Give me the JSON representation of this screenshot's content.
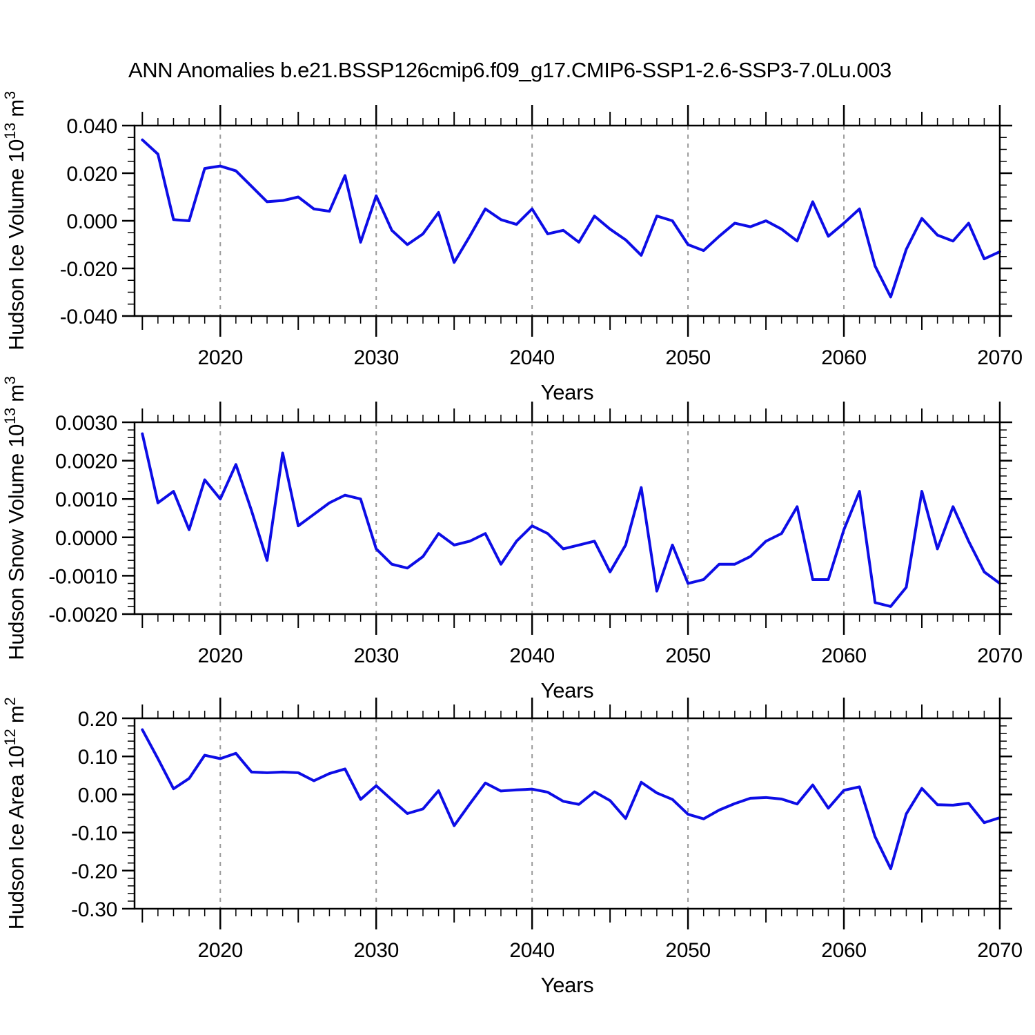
{
  "title": "ANN Anomalies b.e21.BSSP126cmip6.f09_g17.CMIP6-SSP1-2.6-SSP3-7.0Lu.003",
  "colors": {
    "line": "#0d0de6",
    "grid": "#9a9a9a",
    "axis": "#000000",
    "background": "#ffffff",
    "text": "#000000"
  },
  "x_axis": {
    "label": "Years",
    "range": [
      2014.5,
      2070
    ],
    "labeled_ticks": [
      2020,
      2030,
      2040,
      2050,
      2060,
      2070
    ],
    "gridlines": [
      2020,
      2030,
      2040,
      2050,
      2060
    ],
    "minor_tick_step_years": 1,
    "medium_tick_step_years": 5,
    "data_years": [
      2015,
      2016,
      2017,
      2018,
      2019,
      2020,
      2021,
      2022,
      2023,
      2024,
      2025,
      2026,
      2027,
      2028,
      2029,
      2030,
      2031,
      2032,
      2033,
      2034,
      2035,
      2036,
      2037,
      2038,
      2039,
      2040,
      2041,
      2042,
      2043,
      2044,
      2045,
      2046,
      2047,
      2048,
      2049,
      2050,
      2051,
      2052,
      2053,
      2054,
      2055,
      2056,
      2057,
      2058,
      2059,
      2060,
      2061,
      2062,
      2063,
      2064,
      2065,
      2066,
      2067,
      2068,
      2069,
      2070
    ]
  },
  "chart_data": [
    {
      "type": "line",
      "name": "hudson-ice-volume",
      "ylabel_plain": "Hudson Ice Volume 10^13 m^3",
      "ylabel_segments": [
        {
          "t": "Hudson Ice Volume 10"
        },
        {
          "sup": "13"
        },
        {
          "t": " m"
        },
        {
          "sup": "3"
        }
      ],
      "ylim": [
        -0.04,
        0.04
      ],
      "y_major_step": 0.02,
      "y_divisions_per_major": 4,
      "y_tick_labels": [
        "0.040",
        "0.020",
        "0.000",
        "-0.020",
        "-0.040"
      ],
      "values": [
        0.034,
        0.028,
        0.0005,
        0.0,
        0.022,
        0.023,
        0.021,
        0.0145,
        0.008,
        0.0085,
        0.01,
        0.005,
        0.004,
        0.019,
        -0.009,
        0.0105,
        -0.004,
        -0.01,
        -0.0055,
        0.0035,
        -0.0175,
        -0.0065,
        0.005,
        0.0005,
        -0.0015,
        0.005,
        -0.0055,
        -0.004,
        -0.009,
        0.002,
        -0.0035,
        -0.008,
        -0.0145,
        0.002,
        0.0,
        -0.01,
        -0.0125,
        -0.0065,
        -0.001,
        -0.0025,
        0.0,
        -0.0035,
        -0.0085,
        0.008,
        -0.0065,
        -0.001,
        0.005,
        -0.019,
        -0.032,
        -0.012,
        0.001,
        -0.006,
        -0.0085,
        -0.001,
        -0.016,
        -0.013
      ]
    },
    {
      "type": "line",
      "name": "hudson-snow-volume",
      "ylabel_plain": "Hudson Snow Volume 10^13 m^3",
      "ylabel_segments": [
        {
          "t": "Hudson Snow Volume 10"
        },
        {
          "sup": "13"
        },
        {
          "t": " m"
        },
        {
          "sup": "3"
        }
      ],
      "ylim": [
        -0.002,
        0.003
      ],
      "y_major_step": 0.001,
      "y_divisions_per_major": 5,
      "y_tick_labels": [
        "0.0030",
        "0.0020",
        "0.0010",
        "0.0000",
        "-0.0010",
        "-0.0020"
      ],
      "values": [
        0.0027,
        0.0009,
        0.0012,
        0.0002,
        0.0015,
        0.001,
        0.0019,
        0.0007,
        -0.0006,
        0.0022,
        0.0003,
        0.0006,
        0.0009,
        0.0011,
        0.001,
        -0.0003,
        -0.0007,
        -0.0008,
        -0.0005,
        0.0001,
        -0.0002,
        -0.0001,
        0.0001,
        -0.0007,
        -0.0001,
        0.0003,
        0.0001,
        -0.0003,
        -0.0002,
        -0.0001,
        -0.0009,
        -0.0002,
        0.0013,
        -0.0014,
        -0.0002,
        -0.0012,
        -0.0011,
        -0.0007,
        -0.0007,
        -0.0005,
        -0.0001,
        0.0001,
        0.0008,
        -0.0011,
        -0.0011,
        0.0002,
        0.0012,
        -0.0017,
        -0.0018,
        -0.0013,
        0.0012,
        -0.0003,
        0.0008,
        -0.0001,
        -0.0009,
        -0.0012
      ]
    },
    {
      "type": "line",
      "name": "hudson-ice-area",
      "ylabel_plain": "Hudson Ice Area 10^12 m^2",
      "ylabel_segments": [
        {
          "t": "Hudson Ice Area 10"
        },
        {
          "sup": "12"
        },
        {
          "t": " m"
        },
        {
          "sup": "2"
        }
      ],
      "ylim": [
        -0.3,
        0.2
      ],
      "y_major_step": 0.1,
      "y_divisions_per_major": 5,
      "y_tick_labels": [
        "0.20",
        "0.10",
        "0.00",
        "-0.10",
        "-0.20",
        "-0.30"
      ],
      "values": [
        0.17,
        0.094,
        0.015,
        0.042,
        0.103,
        0.094,
        0.108,
        0.059,
        0.057,
        0.059,
        0.057,
        0.036,
        0.055,
        0.067,
        -0.013,
        0.023,
        -0.014,
        -0.05,
        -0.038,
        0.01,
        -0.082,
        -0.025,
        0.03,
        0.009,
        0.012,
        0.014,
        0.006,
        -0.018,
        -0.026,
        0.007,
        -0.016,
        -0.063,
        0.032,
        0.004,
        -0.013,
        -0.052,
        -0.064,
        -0.041,
        -0.024,
        -0.01,
        -0.008,
        -0.012,
        -0.025,
        0.025,
        -0.036,
        0.011,
        0.02,
        -0.111,
        -0.195,
        -0.051,
        0.016,
        -0.027,
        -0.028,
        -0.023,
        -0.074,
        -0.061
      ]
    }
  ]
}
